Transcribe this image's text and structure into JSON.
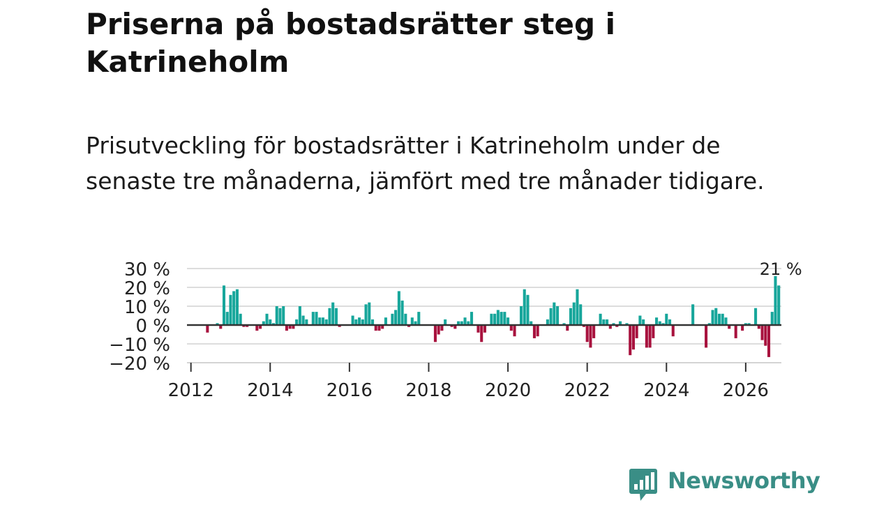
{
  "title": "Priserna på bostadsrätter steg i Katrineholm",
  "subtitle": "Prisutveckling för bostadsrätter i Katrineholm under de senaste tre månaderna, jämfört med tre månader tidigare.",
  "brand": {
    "name": "Newsworthy",
    "color": "#3a8e86"
  },
  "colors": {
    "positive": "#17a69b",
    "negative": "#a8123e",
    "grid": "#dddddd",
    "axis": "#333333"
  },
  "chart_data": {
    "type": "bar",
    "title": "Priserna på bostadsrätter steg i Katrineholm",
    "xlabel": "",
    "ylabel": "",
    "start_year": 2012,
    "start_month": 1,
    "ylim": [
      -20,
      30
    ],
    "xlim_years": [
      2011.9,
      2026.9
    ],
    "y_ticks": [
      30,
      20,
      10,
      0,
      -10,
      -20
    ],
    "y_tick_labels": [
      "30 %",
      "20 %",
      "10 %",
      "0 %",
      "−10 %",
      "−20 %"
    ],
    "x_ticks": [
      2012,
      2014,
      2016,
      2018,
      2020,
      2022,
      2024,
      2026
    ],
    "x_tick_labels": [
      "2012",
      "2014",
      "2016",
      "2018",
      "2020",
      "2022",
      "2024",
      "2026"
    ],
    "annotation": {
      "text": "21 %",
      "target": "last"
    },
    "values": [
      null,
      null,
      null,
      null,
      null,
      -4,
      null,
      null,
      1,
      -2,
      21,
      7,
      16,
      18,
      19,
      6,
      -1,
      -1,
      0,
      0,
      -3,
      -2,
      2,
      6,
      3,
      1,
      10,
      9,
      10,
      -3,
      -2,
      -2,
      3,
      10,
      5,
      3,
      0,
      7,
      7,
      4,
      4,
      3,
      9,
      12,
      9,
      -1,
      0,
      0,
      0,
      5,
      3,
      4,
      3,
      11,
      12,
      3,
      -3,
      -3,
      -2,
      4,
      0,
      6,
      8,
      18,
      13,
      6,
      -1,
      4,
      2,
      7,
      0,
      0,
      0,
      0,
      -9,
      -5,
      -3,
      3,
      0,
      -1,
      -2,
      2,
      2,
      4,
      2,
      7,
      0,
      -4,
      -9,
      -4,
      0,
      6,
      6,
      8,
      7,
      7,
      4,
      -3,
      -6,
      0,
      10,
      19,
      16,
      2,
      -7,
      -6,
      0,
      0,
      3,
      9,
      12,
      10,
      0,
      1,
      -3,
      9,
      12,
      19,
      11,
      -1,
      -9,
      -12,
      -7,
      0,
      6,
      3,
      3,
      -2,
      1,
      -1,
      2,
      0,
      1,
      -16,
      -13,
      -7,
      5,
      3,
      -12,
      -12,
      -7,
      4,
      2,
      1,
      6,
      3,
      -6,
      0,
      0,
      0,
      0,
      0,
      11,
      0,
      0,
      0,
      -12,
      1,
      8,
      9,
      6,
      6,
      4,
      -2,
      0,
      -7,
      0,
      -3,
      1,
      1,
      0,
      9,
      -2,
      -8,
      -11,
      -17,
      7,
      26,
      21
    ]
  }
}
